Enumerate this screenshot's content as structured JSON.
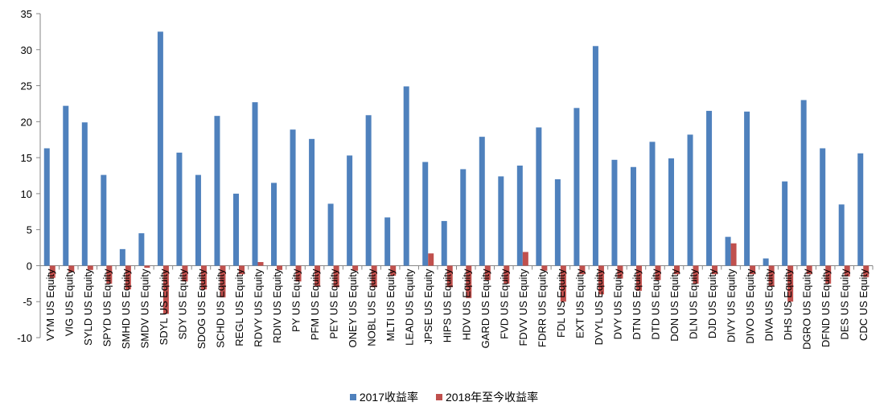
{
  "chart_data": {
    "type": "bar",
    "title": "",
    "xlabel": "",
    "ylabel": "",
    "ylim": [
      -10,
      35
    ],
    "yticks": [
      -10,
      -5,
      0,
      5,
      10,
      15,
      20,
      25,
      30,
      35
    ],
    "grid": false,
    "legend_position": "bottom",
    "categories": [
      "VYM US Equity",
      "VIG US Equity",
      "SYLD US Equity",
      "SPYD US Equity",
      "SMHD US Equity",
      "SMDV US Equity",
      "SDYL US Equity",
      "SDY US Equity",
      "SDOG US Equity",
      "SCHD US Equity",
      "REGL US Equity",
      "RDVY US Equity",
      "RDIV US Equity",
      "PY US Equity",
      "PFM US Equity",
      "PEY US Equity",
      "ONEY US Equity",
      "NOBL US Equity",
      "MLTI US Equity",
      "LEAD US Equity",
      "JPSE US Equity",
      "HIPS US Equity",
      "HDV US Equity",
      "GARD US Equity",
      "FVD US Equity",
      "FDVV US Equity",
      "FDRR US Equity",
      "FDL US Equity",
      "EXT US Equity",
      "DVYL US Equity",
      "DVY US Equity",
      "DTN US Equity",
      "DTD US Equity",
      "DON US Equity",
      "DLN US Equity",
      "DJD US Equity",
      "DIVY US Equity",
      "DIVO US Equity",
      "DIVA US Equity",
      "DHS US Equity",
      "DGRO US Equity",
      "DFND US Equity",
      "DES US Equity",
      "CDC US Equity"
    ],
    "series": [
      {
        "name": "2017收益率",
        "color": "#4f81bd",
        "values": [
          16.3,
          22.2,
          19.9,
          12.6,
          2.3,
          4.5,
          32.5,
          15.7,
          12.6,
          20.8,
          10.0,
          22.7,
          11.5,
          18.9,
          17.6,
          8.6,
          15.3,
          20.9,
          6.7,
          24.9,
          14.4,
          6.2,
          13.4,
          17.9,
          12.4,
          13.9,
          19.2,
          12.0,
          21.9,
          30.5,
          14.7,
          13.7,
          17.2,
          14.9,
          18.2,
          21.5,
          4.0,
          21.4,
          1.0,
          11.7,
          23.0,
          16.3,
          8.5,
          15.6
        ]
      },
      {
        "name": "2018年至今收益率",
        "color": "#c0504d",
        "values": [
          -1.7,
          -0.9,
          -0.6,
          -2.5,
          -3.3,
          -0.3,
          -6.7,
          -2.2,
          -3.3,
          -4.4,
          -1.2,
          0.5,
          -0.6,
          -2.2,
          -2.8,
          -3.0,
          -0.7,
          -3.0,
          -1.4,
          0,
          1.7,
          -3.0,
          -4.5,
          -2.0,
          -2.5,
          1.9,
          -0.7,
          -5.0,
          -1.2,
          -4.0,
          -1.8,
          -3.5,
          -2.0,
          -1.2,
          -2.5,
          -1.2,
          3.1,
          -1.2,
          -2.8,
          -5.0,
          -1.2,
          -2.5,
          -1.5,
          -1.6
        ]
      }
    ]
  }
}
